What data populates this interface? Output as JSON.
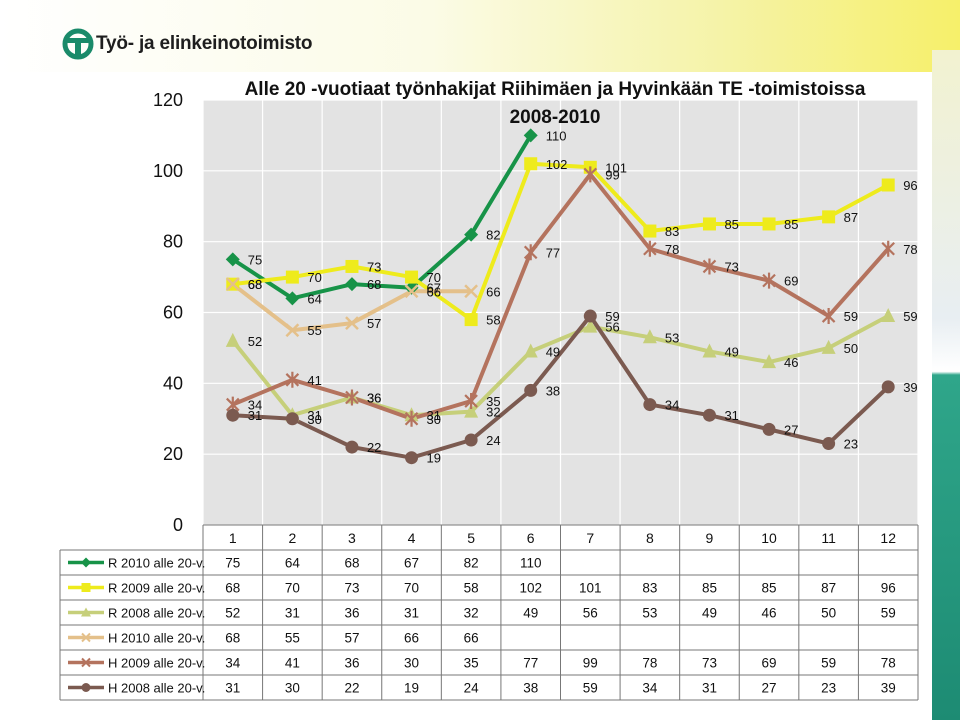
{
  "header": {
    "logo_text": "Työ- ja elinkeinotoimisto"
  },
  "colors": {
    "background": "#ffffff",
    "plot_area": "#e3e3e3",
    "grid": "#ffffff"
  },
  "chart_data": {
    "type": "line",
    "title": "Alle 20 -vuotiaat työnhakijat Riihimäen ja Hyvinkään TE -toimistoissa 2008-2010",
    "title_lines": [
      "Alle 20 -vuotiaat työnhakijat Riihimäen ja Hyvinkään TE -toimistoissa",
      "2008-2010"
    ],
    "categories": [
      "1",
      "2",
      "3",
      "4",
      "5",
      "6",
      "7",
      "8",
      "9",
      "10",
      "11",
      "12"
    ],
    "ylim": [
      0,
      120
    ],
    "yticks": [
      0,
      20,
      40,
      60,
      80,
      100,
      120
    ],
    "grid": true,
    "legend_placement": "data-table-left",
    "series": [
      {
        "name": "R 2010 alle 20-v.",
        "color": "#179348",
        "marker": "diamond",
        "values": [
          75,
          64,
          68,
          67,
          82,
          110,
          null,
          null,
          null,
          null,
          null,
          null
        ]
      },
      {
        "name": "R 2009 alle 20-v.",
        "color": "#eeeb1c",
        "marker": "square",
        "values": [
          68,
          70,
          73,
          70,
          58,
          102,
          101,
          83,
          85,
          85,
          87,
          96
        ]
      },
      {
        "name": "R 2008 alle 20-v.",
        "color": "#c6cf7a",
        "marker": "triangle",
        "values": [
          52,
          31,
          36,
          31,
          32,
          49,
          56,
          53,
          49,
          46,
          50,
          59
        ]
      },
      {
        "name": "H 2010 alle 20-v.",
        "color": "#e4c08a",
        "marker": "x",
        "values": [
          68,
          55,
          57,
          66,
          66,
          null,
          null,
          null,
          null,
          null,
          null,
          null
        ]
      },
      {
        "name": "H 2009 alle 20-v.",
        "color": "#b4735e",
        "marker": "star",
        "values": [
          34,
          41,
          36,
          30,
          35,
          77,
          99,
          78,
          73,
          69,
          59,
          78
        ]
      },
      {
        "name": "H 2008 alle 20-v.",
        "color": "#7b5a50",
        "marker": "circle",
        "values": [
          31,
          30,
          22,
          19,
          24,
          38,
          59,
          34,
          31,
          27,
          23,
          39
        ]
      }
    ]
  }
}
